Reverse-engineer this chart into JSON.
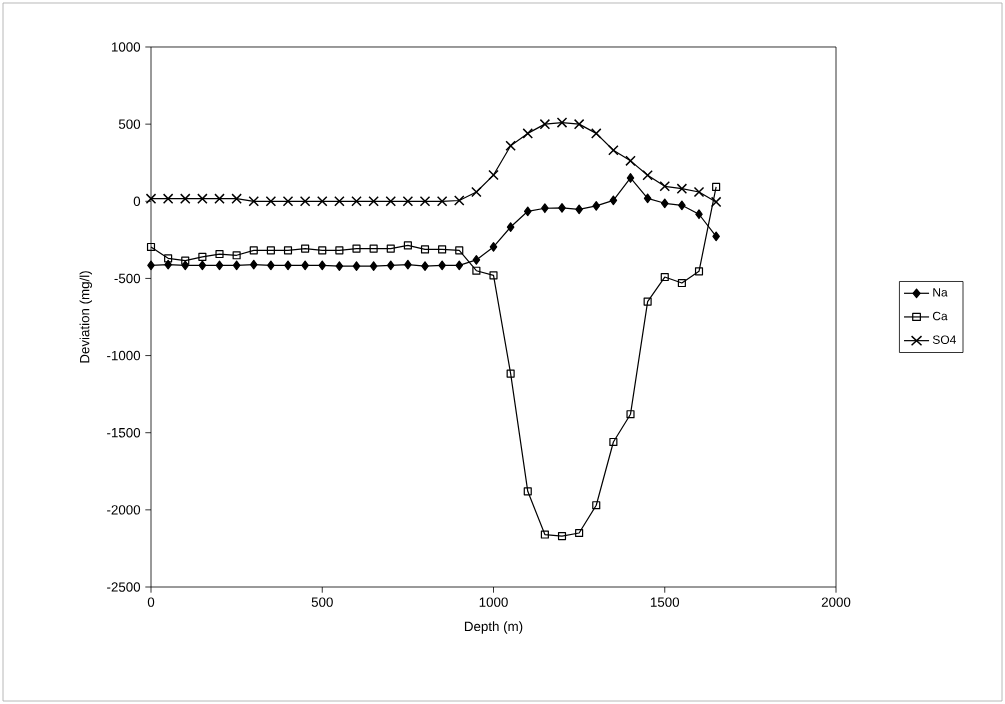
{
  "chart_data": {
    "type": "line",
    "xlabel": "Depth (m)",
    "ylabel": "Deviation (mg/l)",
    "x": [
      0,
      50,
      100,
      150,
      200,
      250,
      300,
      350,
      400,
      450,
      500,
      550,
      600,
      650,
      700,
      750,
      800,
      850,
      900,
      950,
      1000,
      1050,
      1100,
      1150,
      1200,
      1250,
      1300,
      1350,
      1400,
      1450,
      1500,
      1550,
      1600,
      1650
    ],
    "series": [
      {
        "name": "Na",
        "color": "#000000",
        "marker": "diamond",
        "values": [
          -415,
          -410,
          -415,
          -415,
          -415,
          -415,
          -410,
          -415,
          -415,
          -415,
          -415,
          -420,
          -420,
          -420,
          -415,
          -410,
          -420,
          -415,
          -415,
          -380,
          -296,
          -167,
          -65,
          -45,
          -43,
          -52,
          -30,
          6,
          151,
          19,
          -13,
          -26,
          -84,
          -227
        ]
      },
      {
        "name": "Ca",
        "color": "#000000",
        "marker": "square",
        "values": [
          -296,
          -370,
          -385,
          -360,
          -342,
          -350,
          -318,
          -318,
          -318,
          -307,
          -318,
          -318,
          -307,
          -307,
          -307,
          -286,
          -312,
          -312,
          -318,
          -450,
          -480,
          -1117,
          -1880,
          -2160,
          -2170,
          -2150,
          -1970,
          -1560,
          -1380,
          -650,
          -491,
          -530,
          -454,
          93
        ]
      },
      {
        "name": "SO4",
        "color": "#000000",
        "marker": "cross",
        "values": [
          17,
          17,
          17,
          17,
          17,
          17,
          0,
          0,
          0,
          0,
          0,
          0,
          0,
          0,
          0,
          0,
          0,
          0,
          5,
          60,
          170,
          360,
          440,
          500,
          510,
          500,
          440,
          331,
          262,
          169,
          97,
          82,
          60,
          -4
        ]
      }
    ],
    "xlim": [
      0,
      2000
    ],
    "xticks": [
      0,
      500,
      1000,
      1500,
      2000
    ],
    "ylim": [
      -2500,
      1000
    ],
    "yticks": [
      -2500,
      -2000,
      -1500,
      -1000,
      -500,
      0,
      500,
      1000
    ],
    "grid": false,
    "legend": "right",
    "line_style": "solid"
  }
}
